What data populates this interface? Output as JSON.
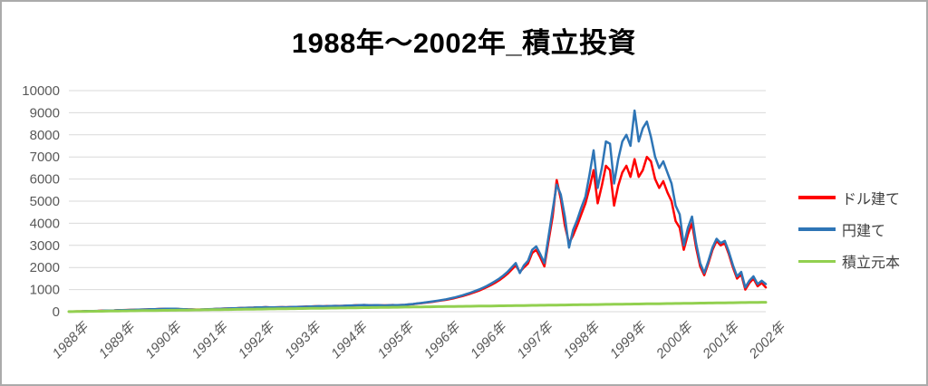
{
  "frame": {
    "border_color": "#ABABAB",
    "background": "#FFFFFF"
  },
  "chart_data": {
    "type": "line",
    "title": "1988年～2002年_積立投資",
    "xlabel": "",
    "ylabel": "",
    "ylim": [
      0,
      10000
    ],
    "ytick_step": 1000,
    "y_tick_labels": [
      "0",
      "1000",
      "2000",
      "3000",
      "4000",
      "5000",
      "6000",
      "7000",
      "8000",
      "9000",
      "10000"
    ],
    "x_tick_labels": [
      "1988年",
      "1989年",
      "1990年",
      "1991年",
      "1992年",
      "1993年",
      "1994年",
      "1995年",
      "1996年",
      "1996年",
      "1997年",
      "1998年",
      "1999年",
      "2000年",
      "2001年",
      "2002年"
    ],
    "grid": "horizontal",
    "grid_color": "#D9D9D9",
    "axis_text_color": "#595959",
    "legend_position": "right",
    "series": [
      {
        "name": "ドル建て",
        "color": "#FF0000",
        "stroke_width": 2.5,
        "values": [
          6,
          8,
          15,
          17,
          24,
          27,
          34,
          37,
          44,
          47,
          54,
          57,
          65,
          69,
          76,
          80,
          88,
          92,
          99,
          103,
          111,
          115,
          122,
          126,
          133,
          135,
          128,
          120,
          113,
          105,
          103,
          97,
          98,
          104,
          114,
          116,
          127,
          131,
          142,
          145,
          155,
          158,
          168,
          171,
          181,
          184,
          194,
          196,
          206,
          196,
          191,
          201,
          203,
          202,
          209,
          211,
          221,
          223,
          233,
          235,
          245,
          247,
          242,
          253,
          256,
          262,
          261,
          265,
          276,
          279,
          290,
          293,
          304,
          293,
          287,
          298,
          288,
          286,
          290,
          302,
          292,
          304,
          308,
          326,
          344,
          367,
          385,
          408,
          432,
          455,
          483,
          511,
          538,
          575,
          612,
          658,
          705,
          762,
          820,
          885,
          952,
          1028,
          1113,
          1208,
          1313,
          1427,
          1560,
          1712,
          1900,
          2090,
          1800,
          2000,
          2180,
          2650,
          2800,
          2450,
          2050,
          3200,
          4300,
          5950,
          5100,
          3900,
          3100,
          3450,
          3900,
          4400,
          4900,
          5600,
          6400,
          4900,
          5700,
          6600,
          6400,
          4800,
          5700,
          6300,
          6600,
          6100,
          6900,
          6100,
          6400,
          7000,
          6800,
          6000,
          5600,
          5900,
          5400,
          5000,
          4100,
          3800,
          2800,
          3500,
          4000,
          2900,
          2050,
          1650,
          2200,
          2800,
          3200,
          3000,
          3100,
          2600,
          2000,
          1500,
          1700,
          1000,
          1300,
          1500,
          1150,
          1300,
          1100
        ]
      },
      {
        "name": "円建て",
        "color": "#2E75B6",
        "stroke_width": 2.5,
        "values": [
          5,
          9,
          14,
          18,
          23,
          28,
          33,
          38,
          43,
          48,
          53,
          58,
          64,
          70,
          75,
          81,
          87,
          93,
          98,
          104,
          110,
          116,
          121,
          127,
          132,
          137,
          130,
          123,
          116,
          108,
          101,
          95,
          100,
          106,
          112,
          118,
          125,
          133,
          140,
          147,
          153,
          160,
          166,
          173,
          179,
          186,
          192,
          198,
          204,
          198,
          193,
          199,
          205,
          200,
          207,
          213,
          219,
          225,
          231,
          237,
          243,
          249,
          244,
          251,
          258,
          264,
          259,
          267,
          274,
          281,
          288,
          295,
          302,
          295,
          289,
          296,
          290,
          284,
          292,
          300,
          294,
          302,
          310,
          330,
          350,
          375,
          395,
          420,
          445,
          470,
          500,
          530,
          560,
          600,
          640,
          690,
          740,
          800,
          860,
          930,
          1000,
          1080,
          1170,
          1270,
          1380,
          1500,
          1640,
          1800,
          2000,
          2200,
          1750,
          2100,
          2300,
          2800,
          2950,
          2600,
          2200,
          3400,
          4600,
          5750,
          5300,
          4300,
          2900,
          3700,
          4150,
          4700,
          5200,
          6200,
          7300,
          5600,
          6500,
          7700,
          7600,
          5800,
          6900,
          7700,
          8000,
          7500,
          9100,
          7700,
          8300,
          8600,
          7900,
          7000,
          6500,
          6800,
          6300,
          5800,
          4800,
          4400,
          3000,
          3800,
          4300,
          3100,
          2200,
          1750,
          2300,
          2900,
          3300,
          3100,
          3200,
          2700,
          2100,
          1600,
          1800,
          1100,
          1400,
          1600,
          1250,
          1400,
          1250
        ]
      },
      {
        "name": "積立元本",
        "color": "#92D050",
        "stroke_width": 3,
        "values_linear": {
          "from": 2.5,
          "to": 427.5,
          "count": 171
        }
      }
    ]
  }
}
